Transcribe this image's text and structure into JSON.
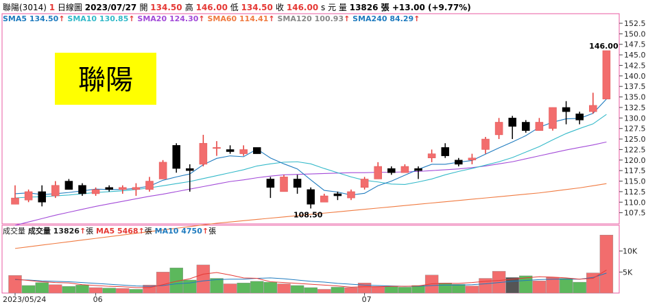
{
  "header": {
    "stock": "聯陽(3014)",
    "badge": "1",
    "period": "日線圖",
    "date": "2023/07/27",
    "open_label": "開",
    "open": "134.50",
    "high_label": "高",
    "high": "146.00",
    "low_label": "低",
    "low": "134.50",
    "close_label": "收",
    "close": "146.00",
    "close_suffix": "s 元",
    "vol_label": "量",
    "volume": "13826 張",
    "change": "+13.00 (+9.77%)"
  },
  "ma_legend": [
    {
      "label": "SMA5 134.50",
      "color": "#1f7bbf"
    },
    {
      "label": "SMA10 130.85",
      "color": "#33b9c9"
    },
    {
      "label": "SMA20 124.30",
      "color": "#a24ad8"
    },
    {
      "label": "SMA60 114.41",
      "color": "#f07a40"
    },
    {
      "label": "SMA120 100.93",
      "color": "#888888"
    },
    {
      "label": "SMA240 84.29",
      "color": "#1f7bbf"
    }
  ],
  "vol_legend": [
    {
      "label": "成交量",
      "color": "#222222"
    },
    {
      "label": "成交量 13826",
      "unit": "張",
      "color": "#222222"
    },
    {
      "label": "MA5 5468",
      "unit": "張",
      "color": "#e53935"
    },
    {
      "label": "MA10 4750",
      "unit": "張",
      "color": "#1f7bbf"
    }
  ],
  "overlay_text": "聯陽",
  "colors": {
    "up": "#f26d6d",
    "down": "#000000",
    "vol_up": "#f26d6d",
    "vol_down": "#5cb85c",
    "vol_flat": "#555555",
    "up_arrow": "#e53935",
    "highlight_bg": "#e53935",
    "overlay_bg": "#ffff00"
  },
  "chart_data": {
    "type": "candlestick",
    "x": [
      "2023/05/24",
      "05/25",
      "05/26",
      "05/29",
      "05/30",
      "05/31",
      "06/01",
      "06/02",
      "06/05",
      "06/06",
      "06/07",
      "06/08",
      "06/09",
      "06/12",
      "06/13",
      "06/14",
      "06/15",
      "06/16",
      "06/19",
      "06/20",
      "06/21",
      "06/26",
      "06/27",
      "06/28",
      "06/29",
      "06/30",
      "07/03",
      "07/04",
      "07/05",
      "07/06",
      "07/07",
      "07/10",
      "07/11",
      "07/12",
      "07/13",
      "07/14",
      "07/17",
      "07/18",
      "07/19",
      "07/20",
      "07/21",
      "07/24",
      "07/25",
      "07/26",
      "07/27"
    ],
    "x_tick_labels": [
      {
        "index": 0,
        "label": "2023/05/24"
      },
      {
        "index": 6,
        "label": "06"
      },
      {
        "index": 26,
        "label": "07"
      }
    ],
    "ohlc": [
      [
        109.5,
        114.0,
        109.5,
        111.0
      ],
      [
        110.5,
        113.0,
        110.0,
        112.5
      ],
      [
        112.5,
        114.0,
        109.0,
        110.0
      ],
      [
        111.5,
        115.0,
        111.0,
        114.0
      ],
      [
        115.0,
        115.5,
        113.0,
        113.0
      ],
      [
        114.0,
        114.5,
        111.5,
        112.0
      ],
      [
        112.0,
        113.5,
        111.5,
        113.0
      ],
      [
        113.5,
        114.0,
        112.5,
        113.0
      ],
      [
        113.0,
        114.0,
        112.0,
        113.5
      ],
      [
        113.0,
        114.5,
        111.5,
        113.5
      ],
      [
        113.0,
        116.0,
        112.5,
        115.0
      ],
      [
        115.5,
        120.0,
        115.5,
        119.5
      ],
      [
        123.5,
        124.0,
        117.0,
        118.0
      ],
      [
        118.0,
        119.0,
        112.5,
        117.5
      ],
      [
        119.0,
        126.0,
        118.5,
        124.0
      ],
      [
        123.0,
        124.5,
        121.0,
        123.0
      ],
      [
        122.5,
        123.5,
        121.5,
        122.0
      ],
      [
        121.5,
        123.5,
        121.0,
        122.5
      ],
      [
        123.0,
        123.0,
        121.5,
        121.5
      ],
      [
        115.5,
        116.0,
        111.0,
        113.5
      ],
      [
        112.5,
        116.5,
        112.5,
        116.0
      ],
      [
        115.5,
        116.5,
        112.0,
        113.5
      ],
      [
        113.0,
        113.5,
        108.5,
        109.5
      ],
      [
        110.0,
        112.0,
        110.0,
        111.5
      ],
      [
        112.0,
        112.5,
        110.5,
        111.5
      ],
      [
        111.0,
        113.0,
        110.5,
        112.5
      ],
      [
        113.5,
        116.0,
        113.0,
        115.5
      ],
      [
        115.5,
        119.5,
        115.5,
        118.5
      ],
      [
        118.0,
        118.5,
        116.5,
        117.0
      ],
      [
        117.0,
        119.0,
        117.0,
        118.5
      ],
      [
        118.0,
        118.5,
        115.5,
        117.5
      ],
      [
        120.5,
        122.5,
        119.5,
        121.5
      ],
      [
        123.0,
        124.0,
        120.5,
        121.0
      ],
      [
        120.0,
        120.5,
        118.5,
        119.0
      ],
      [
        120.0,
        121.5,
        119.0,
        120.5
      ],
      [
        122.5,
        125.5,
        121.5,
        125.0
      ],
      [
        126.0,
        130.0,
        125.0,
        129.0
      ],
      [
        130.0,
        130.5,
        125.0,
        128.0
      ],
      [
        129.0,
        129.5,
        126.5,
        127.0
      ],
      [
        127.0,
        130.0,
        127.0,
        129.0
      ],
      [
        127.5,
        132.5,
        127.0,
        132.5
      ],
      [
        132.5,
        134.0,
        128.5,
        131.5
      ],
      [
        131.0,
        131.5,
        128.5,
        129.5
      ],
      [
        131.5,
        136.0,
        131.0,
        133.0
      ],
      [
        134.5,
        146.0,
        134.5,
        146.0
      ]
    ],
    "volume": [
      4200,
      1800,
      2500,
      2000,
      1600,
      1900,
      1300,
      1200,
      1100,
      900,
      1900,
      5000,
      6000,
      3100,
      6700,
      3500,
      2200,
      2400,
      2800,
      2600,
      2200,
      1800,
      1300,
      900,
      1400,
      1300,
      2400,
      1600,
      1500,
      1400,
      1800,
      4300,
      2400,
      2100,
      1700,
      3500,
      5200,
      3700,
      4100,
      2900,
      3700,
      3500,
      2600,
      4800,
      13826
    ],
    "volume_color": [
      "up",
      "down",
      "down",
      "up",
      "down",
      "down",
      "up",
      "down",
      "up",
      "down",
      "up",
      "up",
      "down",
      "down",
      "up",
      "down",
      "up",
      "down",
      "down",
      "down",
      "up",
      "down",
      "down",
      "up",
      "down",
      "up",
      "up",
      "up",
      "down",
      "down",
      "down",
      "up",
      "down",
      "down",
      "up",
      "up",
      "up",
      "flat",
      "down",
      "up",
      "up",
      "down",
      "down",
      "up",
      "up"
    ],
    "sma5": [
      112.0,
      112.2,
      111.8,
      112.0,
      112.3,
      112.7,
      113.1,
      113.0,
      113.0,
      113.3,
      113.8,
      115.2,
      116.0,
      116.7,
      118.9,
      120.4,
      121.0,
      120.8,
      122.6,
      120.5,
      119.1,
      117.9,
      115.3,
      112.8,
      112.4,
      111.7,
      112.1,
      113.9,
      115.0,
      116.4,
      117.8,
      119.0,
      119.0,
      119.5,
      119.9,
      121.4,
      122.9,
      124.3,
      125.8,
      127.8,
      129.0,
      129.8,
      129.9,
      131.1,
      134.5
    ],
    "sma10": [
      111.0,
      111.2,
      111.3,
      111.5,
      111.7,
      112.0,
      112.3,
      112.5,
      112.7,
      113.0,
      113.4,
      113.9,
      114.4,
      114.9,
      115.6,
      116.3,
      117.0,
      117.7,
      118.6,
      119.1,
      119.5,
      119.6,
      119.1,
      118.0,
      117.0,
      116.0,
      115.2,
      114.8,
      114.3,
      114.2,
      114.8,
      115.5,
      116.5,
      117.3,
      118.0,
      118.8,
      119.6,
      120.6,
      121.9,
      123.2,
      124.8,
      126.3,
      127.5,
      128.6,
      130.85
    ],
    "sma20": [
      104.5,
      105.3,
      106.1,
      106.9,
      107.6,
      108.3,
      109.0,
      109.6,
      110.2,
      110.8,
      111.4,
      111.9,
      112.5,
      113.1,
      113.7,
      114.3,
      114.9,
      115.3,
      115.8,
      116.2,
      116.5,
      116.6,
      116.7,
      116.8,
      116.9,
      117.0,
      117.0,
      117.1,
      117.1,
      117.2,
      117.3,
      117.5,
      117.7,
      117.9,
      118.2,
      118.6,
      119.1,
      119.6,
      120.3,
      121.0,
      121.7,
      122.4,
      123.0,
      123.6,
      124.3
    ],
    "sma60": [
      99.0,
      99.4,
      99.8,
      100.2,
      100.6,
      101.0,
      101.4,
      101.8,
      102.2,
      102.6,
      103.0,
      103.4,
      103.8,
      104.2,
      104.6,
      105.0,
      105.3,
      105.6,
      105.9,
      106.2,
      106.5,
      106.8,
      107.1,
      107.4,
      107.7,
      108.0,
      108.3,
      108.6,
      108.9,
      109.2,
      109.5,
      109.8,
      110.1,
      110.4,
      110.7,
      111.0,
      111.3,
      111.6,
      111.9,
      112.2,
      112.6,
      113.0,
      113.4,
      113.9,
      114.41
    ],
    "vol_ma5": [
      3300,
      3000,
      2700,
      2500,
      2400,
      2000,
      1800,
      1600,
      1500,
      1300,
      1300,
      2000,
      2800,
      3400,
      4500,
      4900,
      4300,
      3600,
      3500,
      2700,
      2500,
      2300,
      2100,
      1900,
      1700,
      1400,
      1500,
      1500,
      1600,
      1600,
      1700,
      2200,
      2300,
      2300,
      2500,
      2800,
      3000,
      3300,
      3600,
      3900,
      3800,
      3600,
      3300,
      3500,
      5468
    ],
    "vol_ma10": [
      3200,
      3100,
      2900,
      2800,
      2700,
      2500,
      2300,
      2100,
      1900,
      1700,
      1600,
      1800,
      2200,
      2400,
      2900,
      3200,
      3300,
      3300,
      3500,
      3600,
      3400,
      3100,
      2800,
      2600,
      2300,
      2100,
      1900,
      1800,
      1700,
      1600,
      1600,
      1800,
      1900,
      1900,
      2000,
      2200,
      2500,
      2800,
      3000,
      3200,
      3300,
      3300,
      3300,
      3700,
      4750
    ],
    "price_axis": {
      "min": 105,
      "max": 152.5,
      "ticks": [
        107.5,
        110.0,
        112.5,
        115.0,
        117.5,
        120.0,
        122.5,
        125.0,
        127.5,
        130.0,
        132.5,
        135.0,
        137.5,
        140.0,
        142.5,
        145.0,
        147.5,
        150.0,
        152.5
      ]
    },
    "volume_axis": {
      "min": 0,
      "max": 15000,
      "ticks": [
        {
          "value": 5000,
          "label": "5K"
        },
        {
          "value": 10000,
          "label": "10K"
        }
      ]
    },
    "annotations": [
      {
        "text": "146.00",
        "index": 44,
        "value": 146.0
      },
      {
        "text": "108.50",
        "index": 22,
        "value": 108.5
      }
    ]
  }
}
